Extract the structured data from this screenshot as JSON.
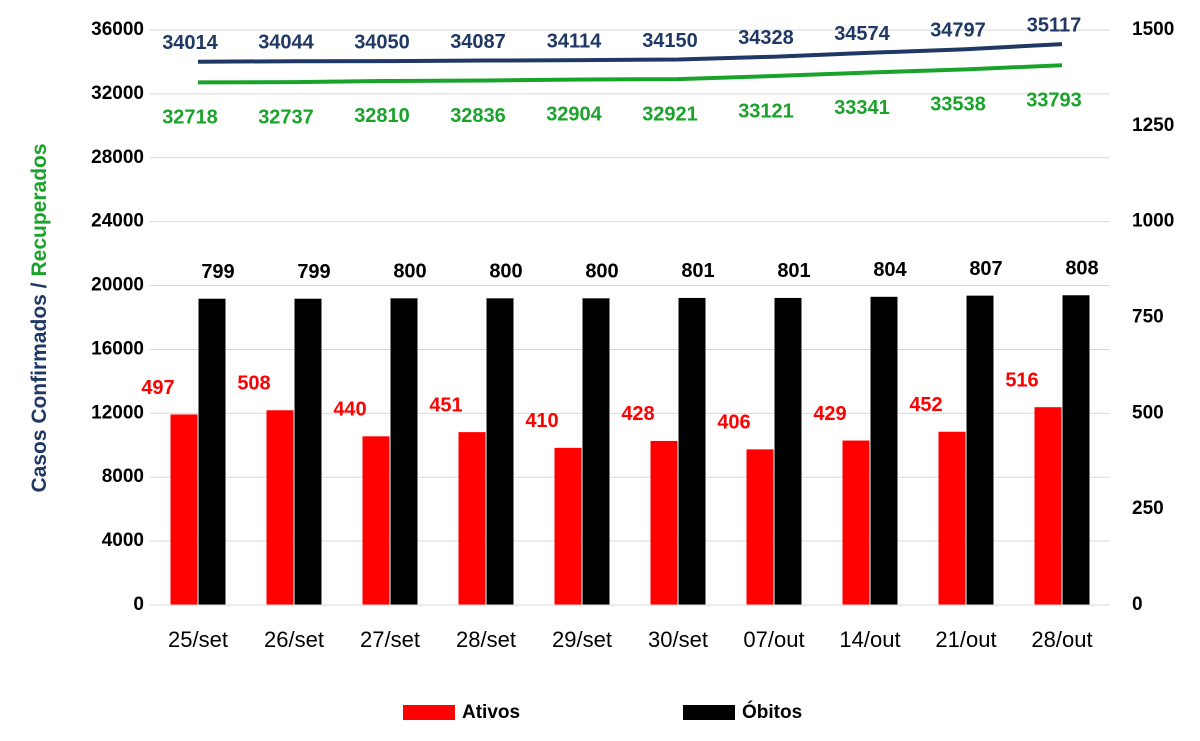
{
  "chart_data": {
    "type": "combo",
    "ylabel": [
      {
        "text": "Casos Confirmados /",
        "color": "#1f3864"
      },
      {
        "text": "Recuperados",
        "color": "#1aa32a"
      }
    ],
    "categories": [
      "25/set",
      "26/set",
      "27/set",
      "28/set",
      "29/set",
      "30/set",
      "07/out",
      "14/out",
      "21/out",
      "28/out"
    ],
    "series": [
      {
        "type": "line",
        "color": "#1f3864",
        "values": [
          34014,
          34044,
          34050,
          34087,
          34114,
          34150,
          34328,
          34574,
          34797,
          35117
        ]
      },
      {
        "type": "line",
        "color": "#1aa32a",
        "values": [
          32718,
          32737,
          32810,
          32836,
          32904,
          32921,
          33121,
          33341,
          33538,
          33793
        ]
      },
      {
        "type": "bar",
        "name": "Ativos",
        "color": "#ff0000",
        "axis": "y2",
        "values": [
          497,
          508,
          440,
          451,
          410,
          428,
          406,
          429,
          452,
          516
        ]
      },
      {
        "type": "bar",
        "name": "Óbitos",
        "color": "#000000",
        "axis": "y2",
        "values": [
          799,
          799,
          800,
          800,
          800,
          801,
          801,
          804,
          807,
          808
        ]
      }
    ],
    "ylim": [
      0,
      36000
    ],
    "yticks": [
      0,
      4000,
      8000,
      12000,
      16000,
      20000,
      24000,
      28000,
      32000,
      36000
    ],
    "y2lim": [
      0,
      1500
    ],
    "y2ticks": [
      0,
      250,
      500,
      750,
      1000,
      1250,
      1500
    ],
    "grid": true
  }
}
